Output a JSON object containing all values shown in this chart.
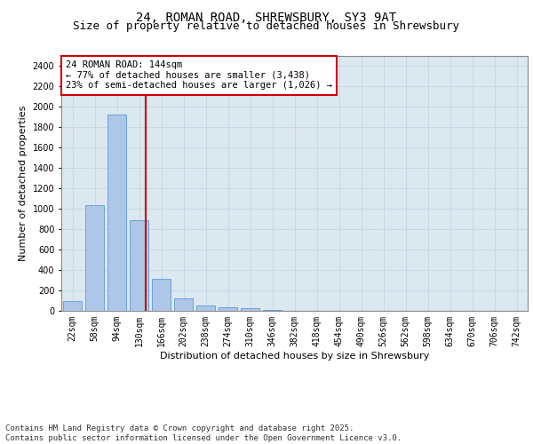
{
  "title_line1": "24, ROMAN ROAD, SHREWSBURY, SY3 9AT",
  "title_line2": "Size of property relative to detached houses in Shrewsbury",
  "xlabel": "Distribution of detached houses by size in Shrewsbury",
  "ylabel": "Number of detached properties",
  "categories": [
    "22sqm",
    "58sqm",
    "94sqm",
    "130sqm",
    "166sqm",
    "202sqm",
    "238sqm",
    "274sqm",
    "310sqm",
    "346sqm",
    "382sqm",
    "418sqm",
    "454sqm",
    "490sqm",
    "526sqm",
    "562sqm",
    "598sqm",
    "634sqm",
    "670sqm",
    "706sqm",
    "742sqm"
  ],
  "values": [
    95,
    1035,
    1920,
    885,
    315,
    120,
    52,
    38,
    25,
    5,
    0,
    0,
    0,
    0,
    0,
    0,
    0,
    0,
    0,
    0,
    0
  ],
  "bar_color": "#aec6e8",
  "bar_edge_color": "#5b9bd5",
  "vline_color": "#cc0000",
  "vline_pos": 3.3,
  "annotation_text": "24 ROMAN ROAD: 144sqm\n← 77% of detached houses are smaller (3,438)\n23% of semi-detached houses are larger (1,026) →",
  "annotation_box_edge_color": "#cc0000",
  "ylim": [
    0,
    2500
  ],
  "yticks": [
    0,
    200,
    400,
    600,
    800,
    1000,
    1200,
    1400,
    1600,
    1800,
    2000,
    2200,
    2400
  ],
  "grid_color": "#c8d8e8",
  "background_color": "#dce8f0",
  "footnote": "Contains HM Land Registry data © Crown copyright and database right 2025.\nContains public sector information licensed under the Open Government Licence v3.0.",
  "title_fontsize": 10,
  "subtitle_fontsize": 9,
  "axis_label_fontsize": 8,
  "tick_fontsize": 7,
  "annotation_fontsize": 7.5,
  "footnote_fontsize": 6.5
}
